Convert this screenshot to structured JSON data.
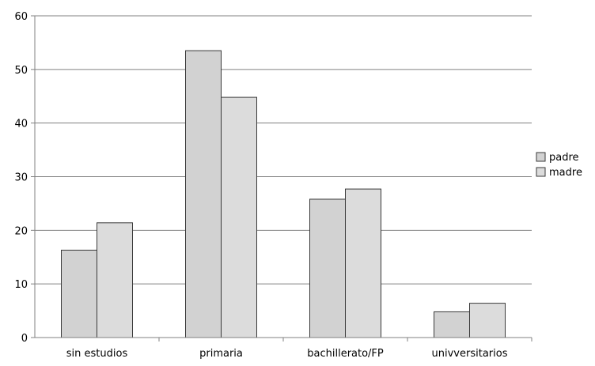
{
  "chart_data": {
    "type": "bar",
    "categories": [
      "sin estudios",
      "primaria",
      "bachillerato/FP",
      "univversitarios"
    ],
    "series": [
      {
        "name": "padre",
        "values": [
          16.3,
          53.5,
          25.8,
          4.8
        ],
        "color": "#d2d2d2"
      },
      {
        "name": "madre",
        "values": [
          21.4,
          44.8,
          27.7,
          6.4
        ],
        "color": "#dcdcdc"
      }
    ],
    "y_ticks": [
      "0",
      "10",
      "20",
      "30",
      "40",
      "50",
      "60"
    ],
    "ylim": [
      0,
      60
    ],
    "grid": true,
    "legend_position": "right"
  }
}
